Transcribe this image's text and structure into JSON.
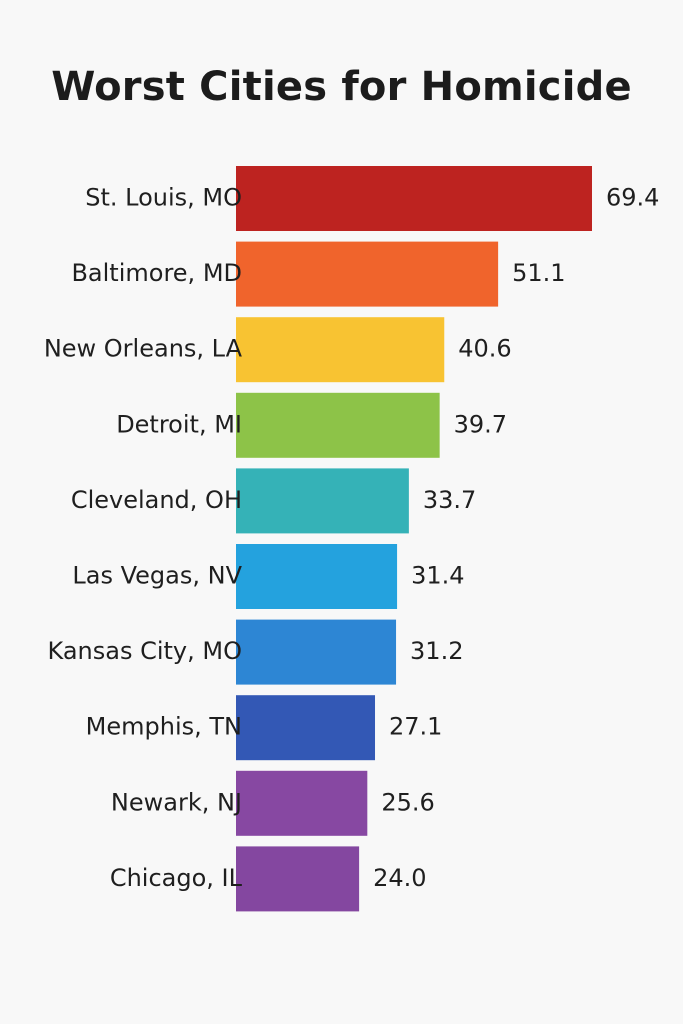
{
  "chart_data": {
    "type": "bar",
    "orientation": "horizontal",
    "title": "Worst Cities for Homicide",
    "xlabel": "",
    "ylabel": "",
    "categories": [
      "St. Louis, MO",
      "Baltimore, MD",
      "New Orleans, LA",
      "Detroit, MI",
      "Cleveland, OH",
      "Las Vegas, NV",
      "Kansas City, MO",
      "Memphis, TN",
      "Newark, NJ",
      "Chicago, IL"
    ],
    "values": [
      69.4,
      51.1,
      40.6,
      39.7,
      33.7,
      31.4,
      31.2,
      27.1,
      25.6,
      24.0
    ],
    "value_labels": [
      "69.4",
      "51.1",
      "40.6",
      "39.7",
      "33.7",
      "31.4",
      "31.2",
      "27.1",
      "25.6",
      "24.0"
    ],
    "colors": [
      "#bd2320",
      "#f0642c",
      "#f8c332",
      "#8dc348",
      "#35b2b7",
      "#24a2de",
      "#2d86d4",
      "#3358b5",
      "#8748a2",
      "#8447a0"
    ],
    "xlim": [
      0,
      69.4
    ],
    "grid": false,
    "legend": "none"
  }
}
